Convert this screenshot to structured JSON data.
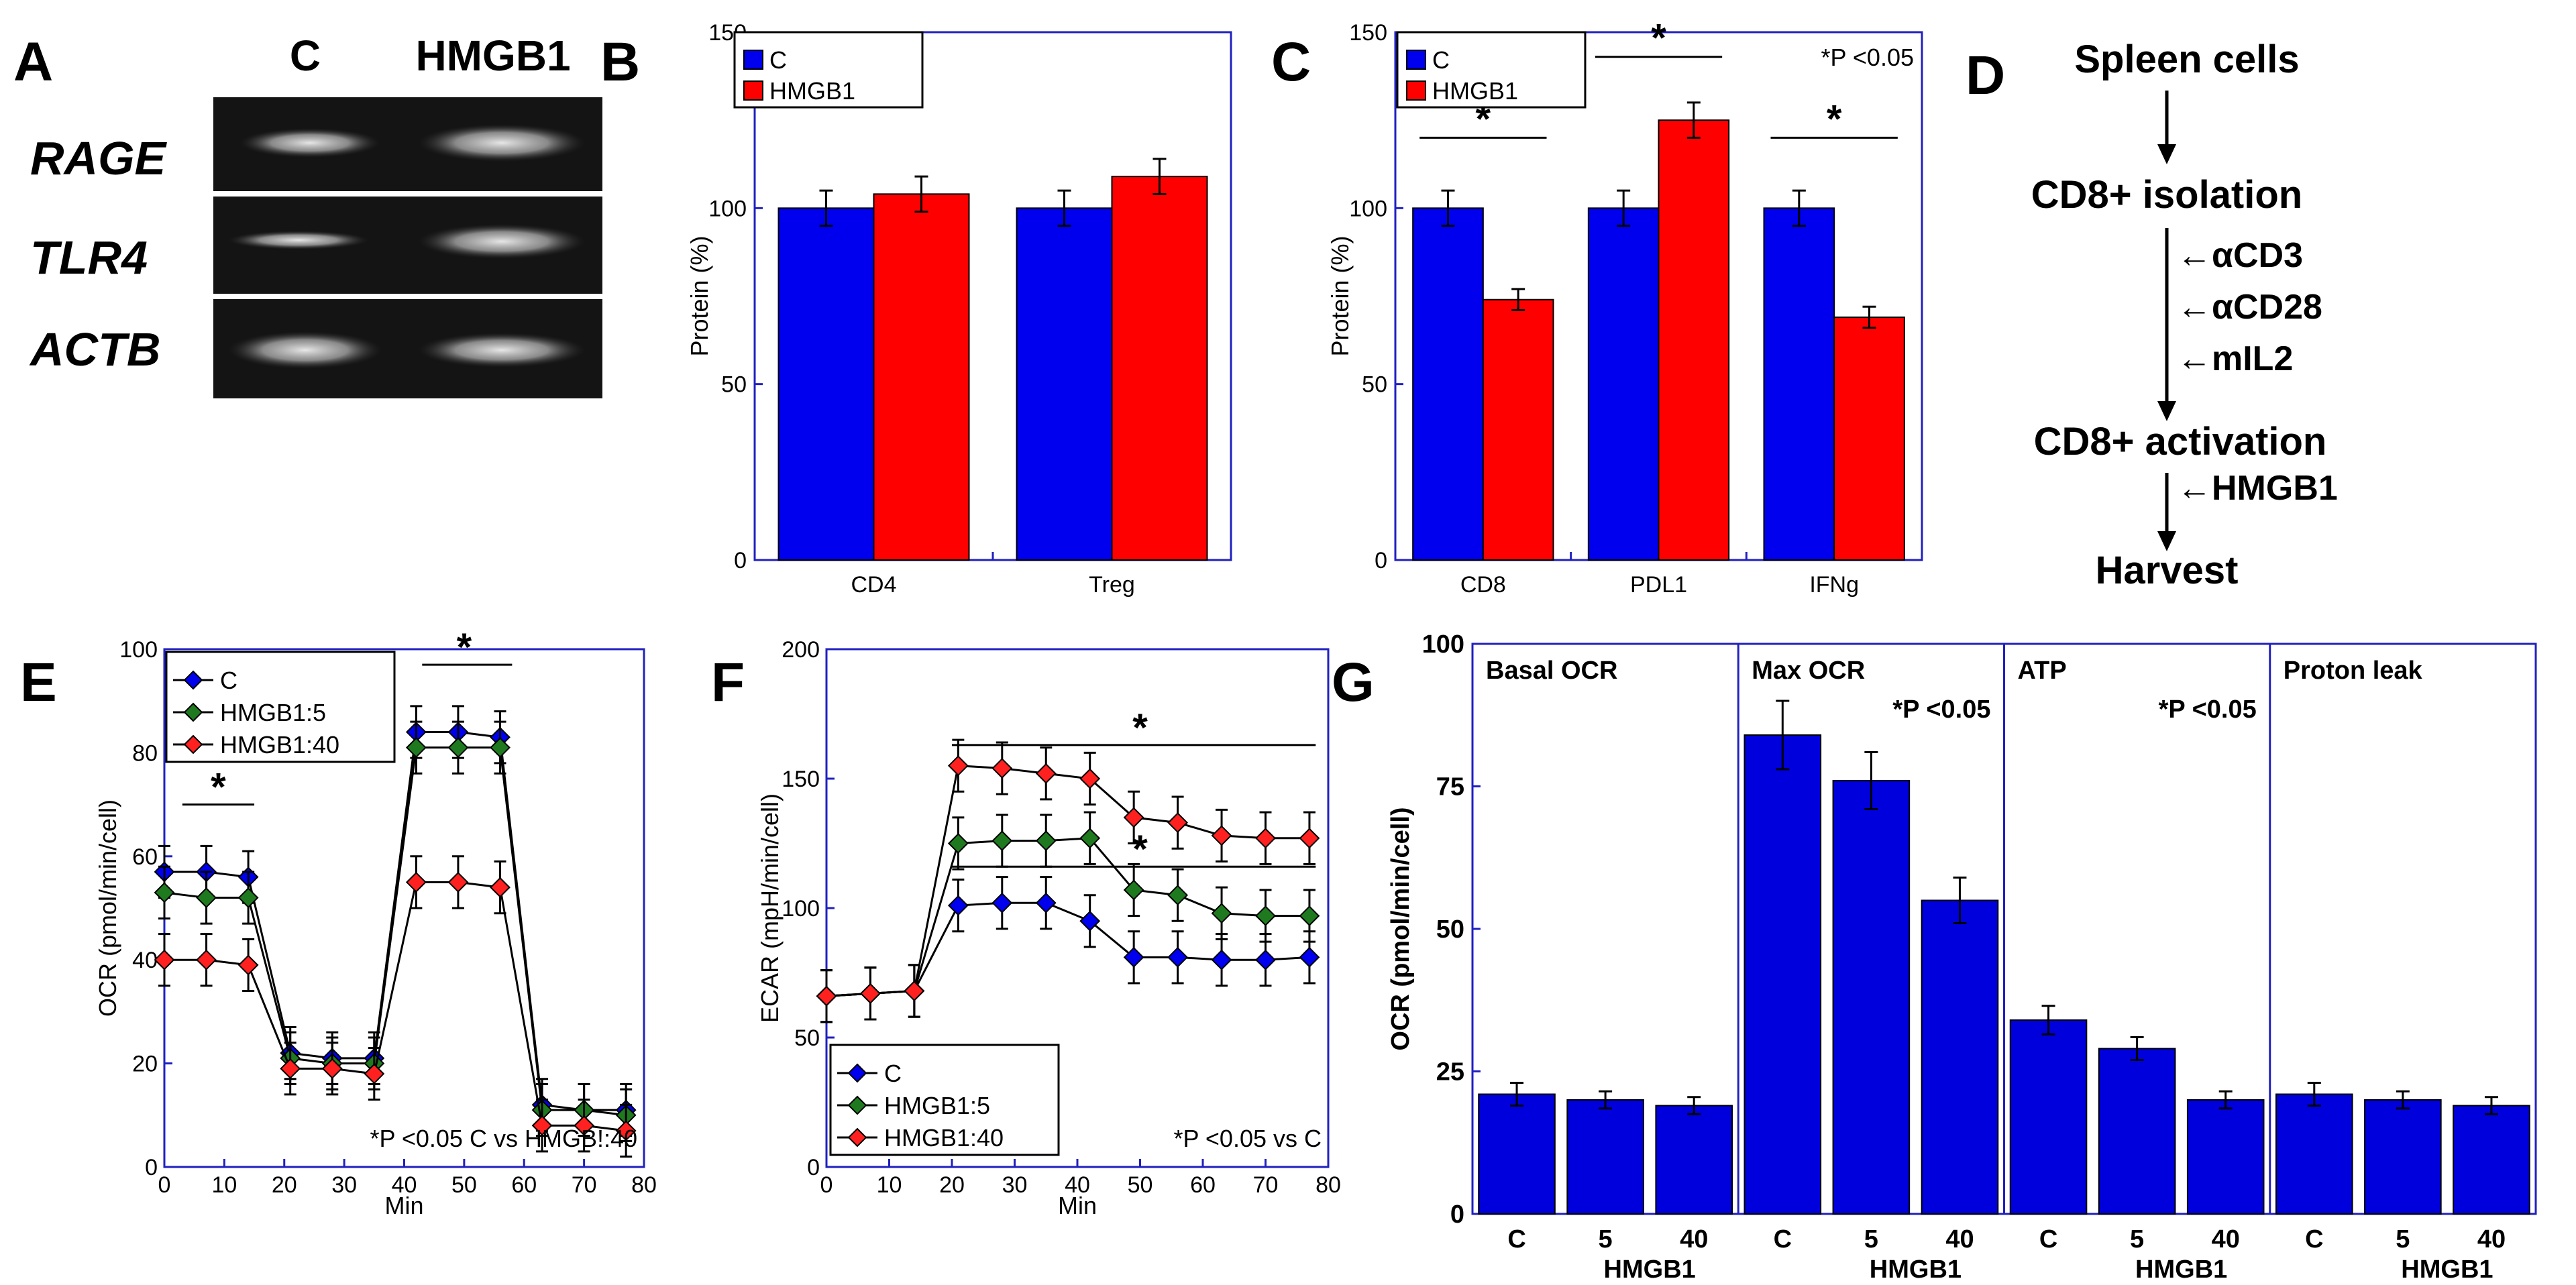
{
  "panels": {
    "A": "A",
    "B": "B",
    "C": "C",
    "D": "D",
    "E": "E",
    "F": "F",
    "G": "G"
  },
  "colors": {
    "C": "#0000ee",
    "HMGB1": "#ff0000",
    "HMGB1_5": "#1f7a1f",
    "HMGB1_40": "#ff2020",
    "axis": "#2020c0",
    "bar_g": "#0000dd"
  },
  "gel": {
    "columns": [
      "C",
      "HMGB1"
    ],
    "lanes": [
      "RAGE",
      "TLR4",
      "ACTB"
    ]
  },
  "flowchart": {
    "steps": [
      "Spleen cells",
      "CD8+ isolation",
      "CD8+ activation",
      "Harvest"
    ],
    "additions1": [
      "←αCD3",
      "←αCD28",
      "←mIL2"
    ],
    "additions2": [
      "←HMGB1"
    ]
  },
  "chart_data": [
    {
      "id": "B",
      "type": "bar",
      "categories": [
        "CD4",
        "Treg"
      ],
      "series": [
        {
          "name": "C",
          "values": [
            100,
            100
          ],
          "errors": [
            5,
            5
          ]
        },
        {
          "name": "HMGB1",
          "values": [
            104,
            109
          ],
          "errors": [
            5,
            5
          ]
        }
      ],
      "ylabel": "Protein (%)",
      "ylim": [
        0,
        150
      ],
      "yticks": [
        0,
        50,
        100,
        150
      ],
      "legend": [
        "C",
        "HMGB1"
      ]
    },
    {
      "id": "C",
      "type": "bar",
      "categories": [
        "CD8",
        "PDL1",
        "IFNg"
      ],
      "series": [
        {
          "name": "C",
          "values": [
            100,
            100,
            100
          ],
          "errors": [
            5,
            5,
            5
          ]
        },
        {
          "name": "HMGB1",
          "values": [
            74,
            125,
            69
          ],
          "errors": [
            3,
            5,
            3
          ]
        }
      ],
      "ylabel": "Protein (%)",
      "ylim": [
        0,
        150
      ],
      "yticks": [
        0,
        50,
        100,
        150
      ],
      "legend": [
        "C",
        "HMGB1"
      ],
      "annotation": "*P <0.05",
      "significance": [
        "*",
        "*",
        "*"
      ]
    },
    {
      "id": "E",
      "type": "line",
      "x": [
        0,
        7,
        14,
        21,
        28,
        35,
        42,
        49,
        56,
        63,
        70,
        77
      ],
      "series": [
        {
          "name": "C",
          "values": [
            57,
            57,
            56,
            22,
            21,
            21,
            84,
            84,
            83,
            12,
            11,
            11
          ]
        },
        {
          "name": "HMGB1:5",
          "values": [
            53,
            52,
            52,
            21,
            20,
            20,
            81,
            81,
            81,
            11,
            11,
            10
          ]
        },
        {
          "name": "HMGB1:40",
          "values": [
            40,
            40,
            39,
            19,
            19,
            18,
            55,
            55,
            54,
            8,
            8,
            7
          ]
        }
      ],
      "error": 5,
      "xlabel": "Min",
      "ylabel": "OCR (pmol/min/cell)",
      "xlim": [
        0,
        80
      ],
      "ylim": [
        0,
        100
      ],
      "xticks": [
        0,
        10,
        20,
        30,
        40,
        50,
        60,
        70,
        80
      ],
      "yticks": [
        0,
        20,
        40,
        60,
        80,
        100
      ],
      "annotation": "*P <0.05 C vs HMGB!:40",
      "significance": [
        "*",
        "*"
      ]
    },
    {
      "id": "F",
      "type": "line",
      "x": [
        0,
        7,
        14,
        21,
        28,
        35,
        42,
        49,
        56,
        63,
        70,
        77
      ],
      "series": [
        {
          "name": "C",
          "values": [
            66,
            67,
            68,
            101,
            102,
            102,
            95,
            81,
            81,
            80,
            80,
            81
          ]
        },
        {
          "name": "HMGB1:5",
          "values": [
            66,
            67,
            68,
            125,
            126,
            126,
            127,
            107,
            105,
            98,
            97,
            97
          ]
        },
        {
          "name": "HMGB1:40",
          "values": [
            66,
            67,
            68,
            155,
            154,
            152,
            150,
            135,
            133,
            128,
            127,
            127
          ]
        }
      ],
      "error": 10,
      "xlabel": "Min",
      "ylabel": "ECAR (mpH/min/cell)",
      "xlim": [
        0,
        80
      ],
      "ylim": [
        0,
        200
      ],
      "xticks": [
        0,
        10,
        20,
        30,
        40,
        50,
        60,
        70,
        80
      ],
      "yticks": [
        0,
        50,
        100,
        150,
        200
      ],
      "annotation": "*P <0.05 vs C",
      "significance": [
        "*",
        "*"
      ]
    },
    {
      "id": "G",
      "type": "bar",
      "groups": [
        {
          "title": "Basal OCR",
          "values": [
            21,
            20,
            19
          ],
          "errors": [
            2,
            1.5,
            1.5
          ],
          "note": ""
        },
        {
          "title": "Max OCR",
          "values": [
            84,
            76,
            55
          ],
          "errors": [
            6,
            5,
            4
          ],
          "note": "*P <0.05"
        },
        {
          "title": "ATP",
          "values": [
            34,
            29,
            20
          ],
          "errors": [
            2.5,
            2,
            1.5
          ],
          "note": "*P <0.05"
        },
        {
          "title": "Proton leak",
          "values": [
            21,
            20,
            19
          ],
          "errors": [
            2,
            1.5,
            1.5
          ],
          "note": ""
        }
      ],
      "categories": [
        "C",
        "5",
        "40"
      ],
      "group_label": "HMGB1",
      "ylabel": "OCR (pmol/min/cell)",
      "ylim": [
        0,
        100
      ],
      "yticks": [
        0,
        25,
        50,
        75,
        100
      ]
    }
  ]
}
